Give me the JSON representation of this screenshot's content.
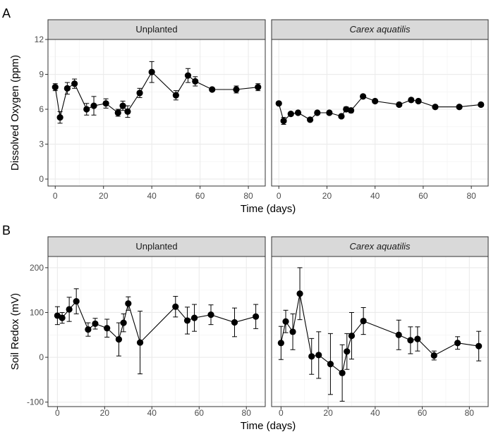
{
  "chart_data": [
    {
      "type": "line",
      "panel_label": "A",
      "ylabel": "Dissolved Oxygen (ppm)",
      "xlabel": "Time (days)",
      "xlim": [
        -3,
        87
      ],
      "ylim": [
        -0.6,
        12
      ],
      "xticks": [
        0,
        20,
        40,
        60,
        80
      ],
      "yticks": [
        0,
        3,
        6,
        9,
        12
      ],
      "xtick_labels": [
        "0",
        "20",
        "40",
        "60",
        "80"
      ],
      "ytick_labels": [
        "0",
        "3",
        "6",
        "9",
        "12"
      ],
      "grid": true,
      "facets": [
        {
          "label": "Unplanted",
          "italic": false,
          "x": [
            0,
            2,
            5,
            8,
            13,
            16,
            21,
            26,
            28,
            30,
            35,
            40,
            50,
            55,
            58,
            65,
            75,
            84
          ],
          "y": [
            7.9,
            5.3,
            7.8,
            8.2,
            6.0,
            6.3,
            6.5,
            5.7,
            6.3,
            5.8,
            7.4,
            9.2,
            7.2,
            8.9,
            8.4,
            7.7,
            7.7,
            7.9
          ],
          "err": [
            0.3,
            0.5,
            0.5,
            0.4,
            0.5,
            0.8,
            0.4,
            0.3,
            0.4,
            0.5,
            0.4,
            0.9,
            0.4,
            0.6,
            0.4,
            0.1,
            0.3,
            0.3
          ]
        },
        {
          "label": "Carex aquatilis",
          "italic": true,
          "x": [
            0,
            2,
            5,
            8,
            13,
            16,
            21,
            26,
            28,
            30,
            35,
            40,
            50,
            55,
            58,
            65,
            75,
            84
          ],
          "y": [
            6.5,
            5.0,
            5.6,
            5.7,
            5.1,
            5.7,
            5.7,
            5.4,
            6.0,
            5.9,
            7.1,
            6.7,
            6.4,
            6.8,
            6.7,
            6.2,
            6.2,
            6.4
          ],
          "err": [
            0.1,
            0.3,
            0.1,
            0.1,
            0.1,
            0.1,
            0.1,
            0.1,
            0.2,
            0.2,
            0.1,
            0.1,
            0.1,
            0.1,
            0.1,
            0.1,
            0.1,
            0.1
          ]
        }
      ]
    },
    {
      "type": "line",
      "panel_label": "B",
      "ylabel": "Soil Redox (mV)",
      "xlabel": "Time (days)",
      "xlim": [
        -4,
        88
      ],
      "ylim": [
        -110,
        225
      ],
      "xticks": [
        0,
        20,
        40,
        60,
        80
      ],
      "yticks": [
        -100,
        0,
        100,
        200
      ],
      "xtick_labels": [
        "0",
        "20",
        "40",
        "60",
        "80"
      ],
      "ytick_labels": [
        "-100",
        "0",
        "100",
        "200"
      ],
      "grid": true,
      "facets": [
        {
          "label": "Unplanted",
          "italic": false,
          "x": [
            0,
            2,
            5,
            8,
            13,
            16,
            21,
            26,
            28,
            30,
            35,
            50,
            55,
            58,
            65,
            75,
            84
          ],
          "y": [
            93,
            88,
            107,
            125,
            62,
            75,
            65,
            40,
            77,
            120,
            33,
            113,
            82,
            88,
            95,
            78,
            91
          ],
          "err": [
            20,
            12,
            27,
            28,
            15,
            12,
            20,
            37,
            20,
            15,
            70,
            23,
            30,
            30,
            22,
            32,
            27
          ]
        },
        {
          "label": "Carex aquatilis",
          "italic": true,
          "x": [
            0,
            2,
            5,
            8,
            13,
            16,
            21,
            26,
            28,
            30,
            35,
            50,
            55,
            58,
            65,
            75,
            84
          ],
          "y": [
            32,
            80,
            57,
            142,
            2,
            5,
            -15,
            -35,
            13,
            48,
            81,
            50,
            38,
            41,
            4,
            32,
            25
          ],
          "err": [
            37,
            25,
            40,
            58,
            40,
            52,
            68,
            63,
            40,
            52,
            30,
            33,
            30,
            27,
            10,
            14,
            33
          ]
        }
      ]
    }
  ]
}
